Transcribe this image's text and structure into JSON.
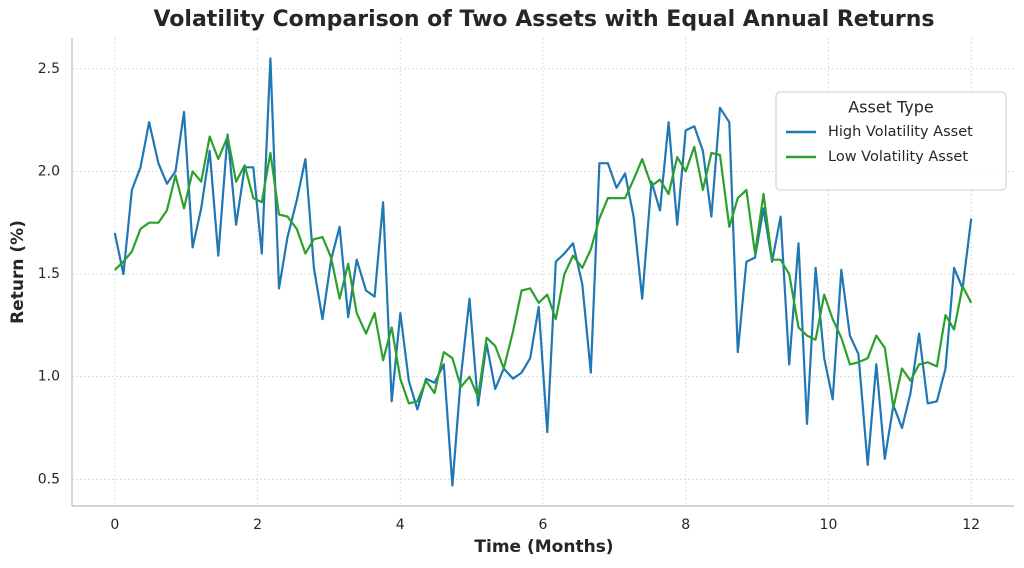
{
  "chart_data": {
    "type": "line",
    "title": "Volatility Comparison of Two Assets with Equal Annual Returns",
    "x_label": "Time (Months)",
    "y_label": "Return (%)",
    "legend_title": "Asset Type",
    "legend": "upper right",
    "grid": true,
    "xlim": [
      -0.6,
      12.6
    ],
    "ylim": [
      0.37,
      2.65
    ],
    "xticks": [
      0,
      2,
      4,
      6,
      8,
      10,
      12
    ],
    "yticks": [
      0.5,
      {
        "value": 1.0,
        "label": "1.0"
      },
      1.5,
      {
        "value": 2.0,
        "label": "2.0"
      },
      2.5
    ],
    "x": [
      0,
      0.12,
      0.24,
      0.36,
      0.48,
      0.61,
      0.73,
      0.85,
      0.97,
      1.09,
      1.21,
      1.33,
      1.45,
      1.58,
      1.7,
      1.82,
      1.94,
      2.06,
      2.18,
      2.3,
      2.42,
      2.55,
      2.67,
      2.79,
      2.91,
      3.03,
      3.15,
      3.27,
      3.39,
      3.52,
      3.64,
      3.76,
      3.88,
      4.0,
      4.12,
      4.24,
      4.36,
      4.48,
      4.61,
      4.73,
      4.85,
      4.97,
      5.09,
      5.21,
      5.33,
      5.45,
      5.58,
      5.7,
      5.82,
      5.94,
      6.06,
      6.18,
      6.3,
      6.42,
      6.55,
      6.67,
      6.79,
      6.91,
      7.03,
      7.15,
      7.27,
      7.39,
      7.52,
      7.64,
      7.76,
      7.88,
      8.0,
      8.12,
      8.24,
      8.36,
      8.48,
      8.61,
      8.73,
      8.85,
      8.97,
      9.09,
      9.21,
      9.33,
      9.45,
      9.58,
      9.7,
      9.82,
      9.94,
      10.06,
      10.18,
      10.3,
      10.42,
      10.55,
      10.67,
      10.79,
      10.91,
      11.03,
      11.15,
      11.27,
      11.39,
      11.52,
      11.64,
      11.76,
      11.88,
      12.0
    ],
    "series": [
      {
        "name": "High Volatility Asset",
        "color": "#1f77b4",
        "values": [
          1.7,
          1.5,
          1.91,
          2.02,
          2.24,
          2.04,
          1.94,
          2.0,
          2.29,
          1.63,
          1.82,
          2.1,
          1.59,
          2.18,
          1.74,
          2.02,
          2.02,
          1.6,
          2.55,
          1.43,
          1.68,
          1.86,
          2.06,
          1.53,
          1.28,
          1.57,
          1.73,
          1.29,
          1.57,
          1.42,
          1.39,
          1.85,
          0.88,
          1.31,
          0.98,
          0.84,
          0.99,
          0.97,
          1.06,
          0.47,
          1.0,
          1.38,
          0.86,
          1.16,
          0.94,
          1.04,
          0.99,
          1.02,
          1.09,
          1.34,
          0.73,
          1.56,
          1.6,
          1.65,
          1.45,
          1.02,
          2.04,
          2.04,
          1.92,
          1.99,
          1.78,
          1.38,
          1.95,
          1.81,
          2.24,
          1.74,
          2.2,
          2.22,
          2.1,
          1.78,
          2.31,
          2.24,
          1.12,
          1.56,
          1.58,
          1.82,
          1.56,
          1.78,
          1.06,
          1.65,
          0.77,
          1.53,
          1.09,
          0.89,
          1.52,
          1.2,
          1.11,
          0.57,
          1.06,
          0.6,
          0.86,
          0.75,
          0.92,
          1.21,
          0.87,
          0.88,
          1.04,
          1.53,
          1.43,
          1.77
        ]
      },
      {
        "name": "Low Volatility Asset",
        "color": "#2ca02c",
        "values": [
          1.52,
          1.56,
          1.61,
          1.72,
          1.75,
          1.75,
          1.81,
          1.98,
          1.82,
          2.0,
          1.95,
          2.17,
          2.06,
          2.17,
          1.95,
          2.03,
          1.87,
          1.85,
          2.09,
          1.79,
          1.78,
          1.72,
          1.6,
          1.67,
          1.68,
          1.58,
          1.38,
          1.55,
          1.31,
          1.21,
          1.31,
          1.08,
          1.24,
          0.99,
          0.87,
          0.88,
          0.98,
          0.92,
          1.12,
          1.09,
          0.95,
          1.0,
          0.9,
          1.19,
          1.15,
          1.04,
          1.22,
          1.42,
          1.43,
          1.36,
          1.4,
          1.28,
          1.5,
          1.59,
          1.53,
          1.62,
          1.77,
          1.87,
          1.87,
          1.87,
          1.96,
          2.06,
          1.93,
          1.96,
          1.89,
          2.07,
          2.0,
          2.12,
          1.91,
          2.09,
          2.08,
          1.73,
          1.87,
          1.91,
          1.6,
          1.89,
          1.57,
          1.57,
          1.5,
          1.24,
          1.2,
          1.18,
          1.4,
          1.28,
          1.19,
          1.06,
          1.07,
          1.09,
          1.2,
          1.14,
          0.85,
          1.04,
          0.98,
          1.06,
          1.07,
          1.05,
          1.3,
          1.23,
          1.44,
          1.36
        ]
      }
    ]
  }
}
